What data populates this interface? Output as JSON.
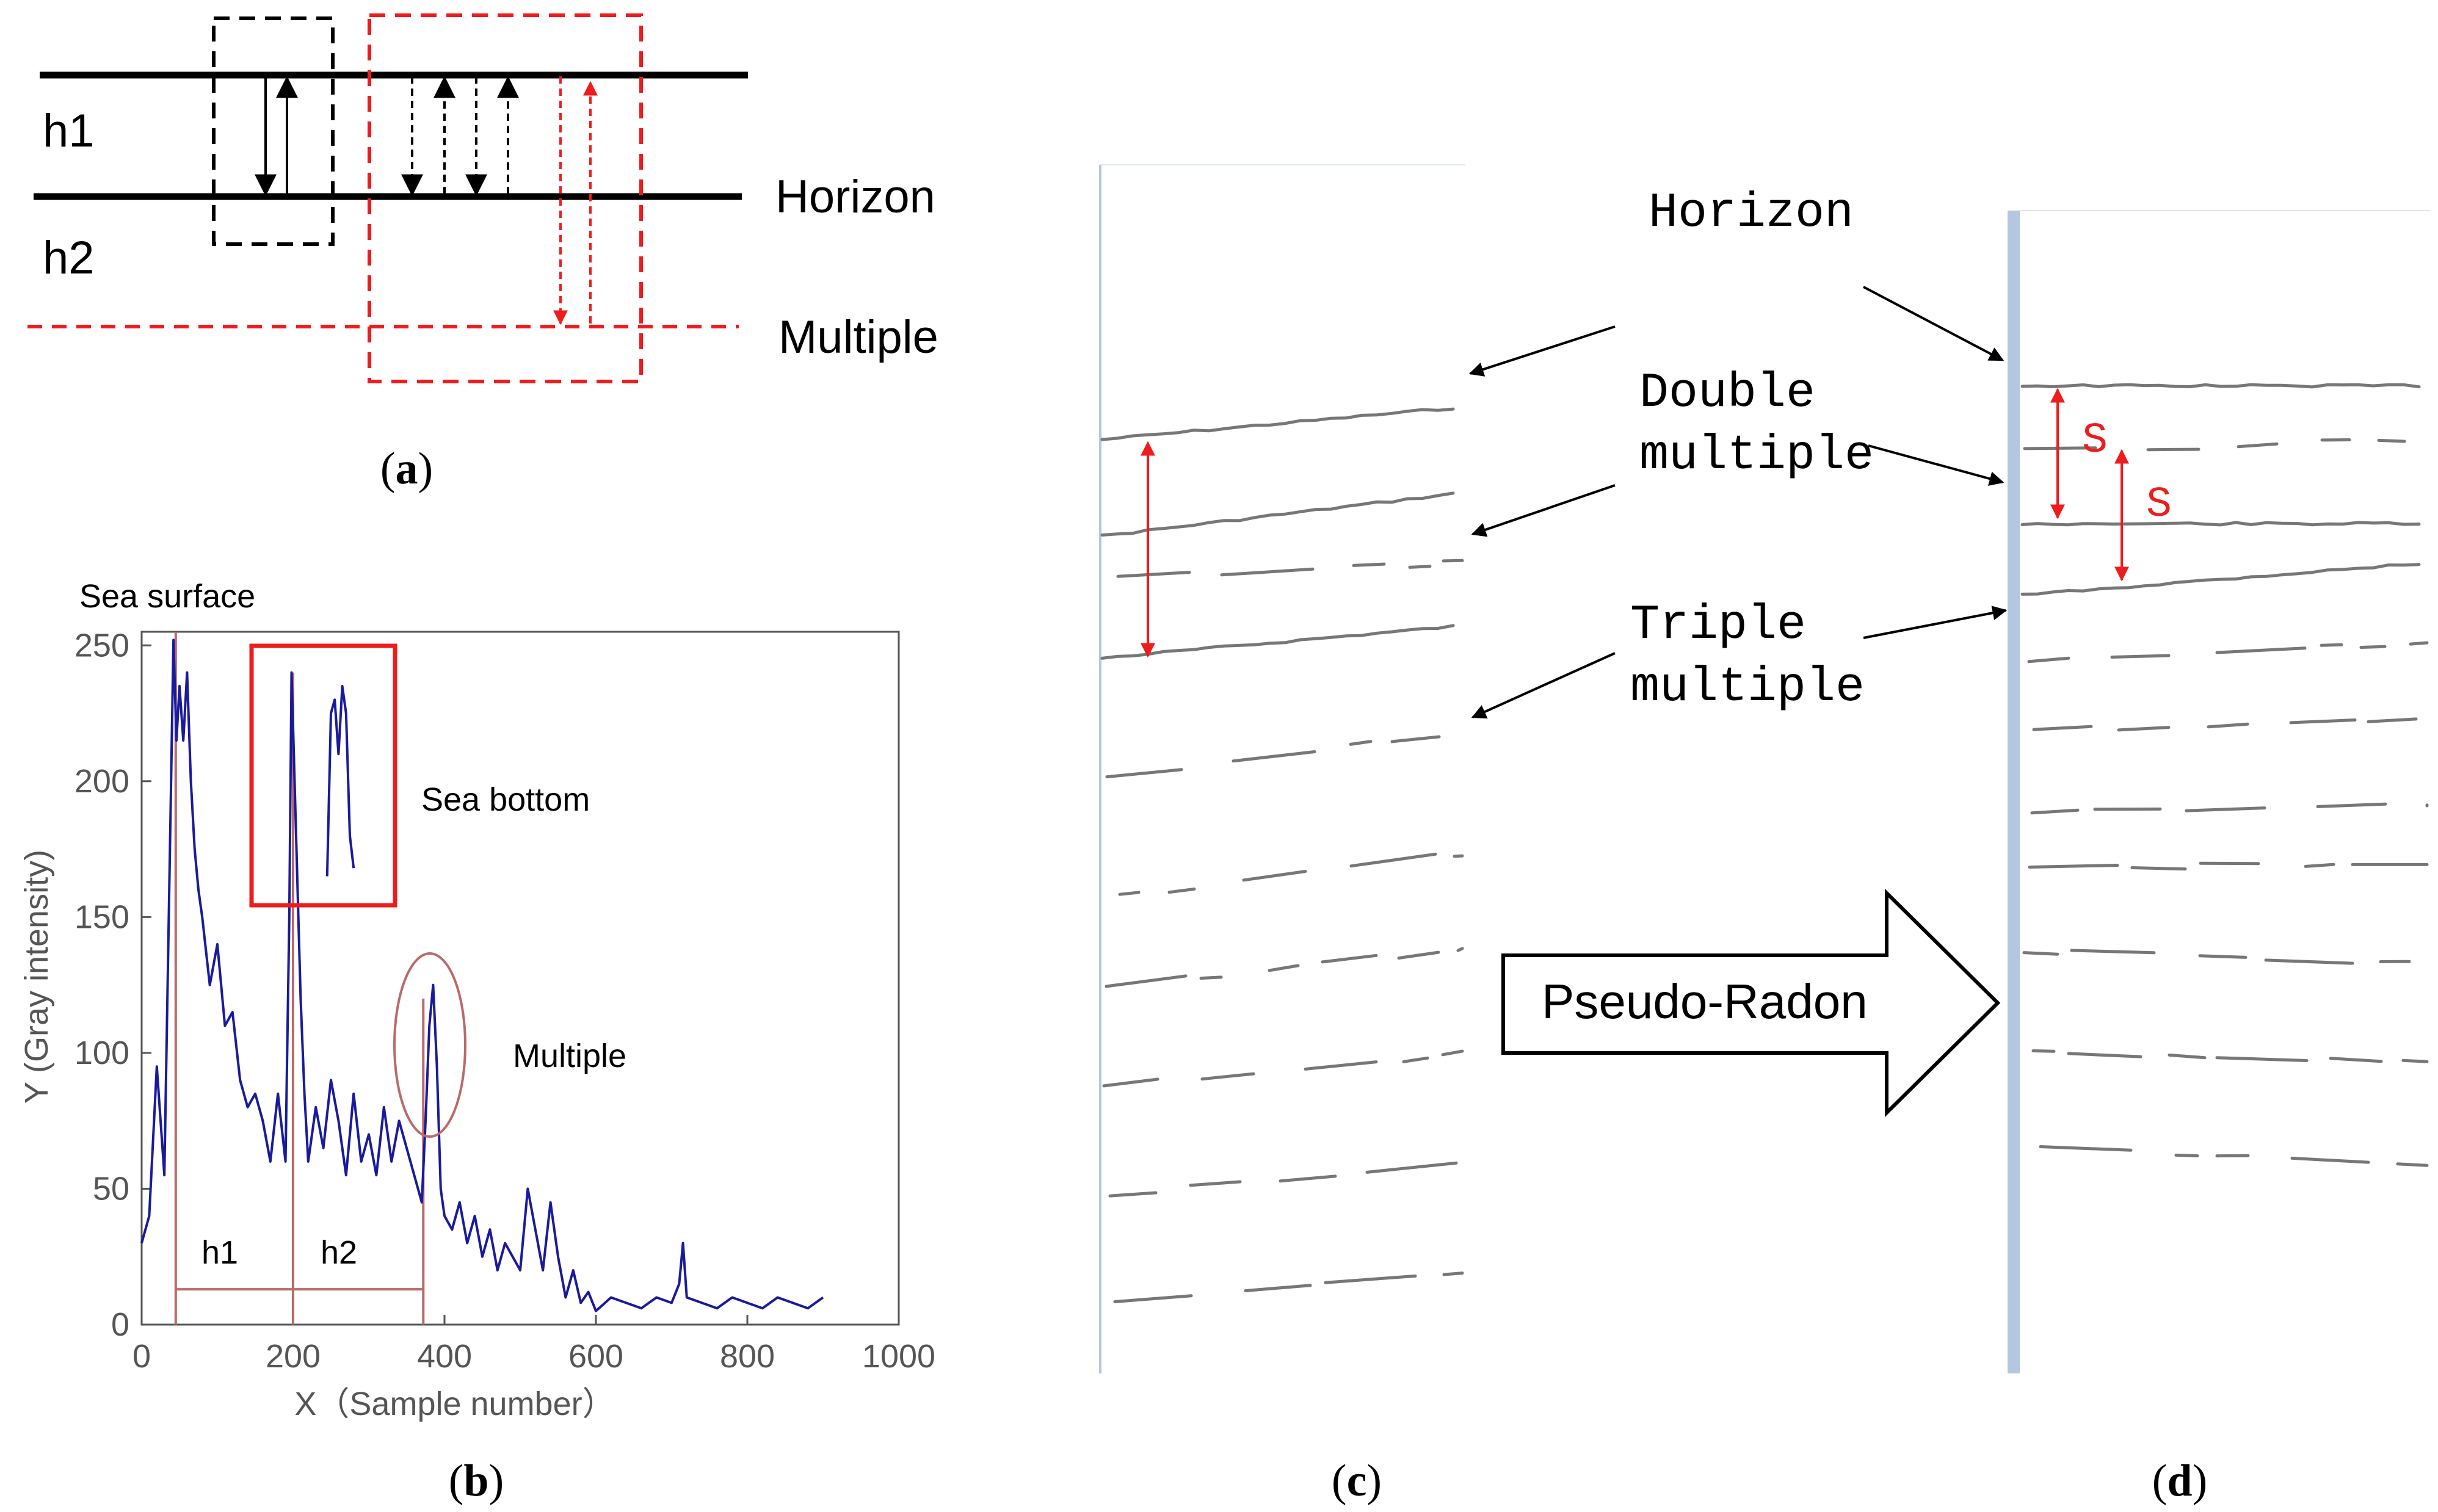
{
  "panel_a": {
    "label": "a",
    "layer_labels": [
      "h1",
      "h2"
    ],
    "horizon_label": "Horizon",
    "multiple_label": "Multiple"
  },
  "panel_b": {
    "label": "b",
    "sea_surface_label": "Sea surface",
    "sea_bottom_label": "Sea bottom",
    "multiple_label": "Multiple",
    "h1_label": "h1",
    "h2_label": "h2",
    "chart_data": {
      "type": "line",
      "title": "",
      "xlabel": "X（Sample number）",
      "ylabel": "Y (Gray intensity)",
      "xlim": [
        0,
        1000
      ],
      "ylim": [
        0,
        255
      ],
      "xticks": [
        0,
        200,
        400,
        600,
        800,
        1000
      ],
      "yticks": [
        0,
        50,
        100,
        150,
        200,
        250
      ],
      "series": [
        {
          "name": "gray intensity",
          "color": "#1a1a9c",
          "x": [
            0,
            10,
            20,
            30,
            38,
            42,
            46,
            50,
            55,
            60,
            65,
            70,
            75,
            80,
            90,
            100,
            110,
            120,
            130,
            140,
            150,
            160,
            170,
            180,
            190,
            195,
            198,
            202,
            206,
            210,
            215,
            220,
            230,
            240,
            250,
            260,
            270,
            280,
            290,
            300,
            310,
            320,
            330,
            340,
            350,
            360,
            370,
            375,
            380,
            385,
            390,
            395,
            400,
            410,
            420,
            430,
            440,
            450,
            460,
            470,
            480,
            490,
            500,
            510,
            520,
            530,
            540,
            550,
            560,
            570,
            580,
            590,
            600,
            620,
            640,
            660,
            680,
            700,
            710,
            715,
            720,
            740,
            760,
            780,
            800,
            820,
            840,
            860,
            880,
            900
          ],
          "values": [
            30,
            40,
            95,
            55,
            185,
            252,
            215,
            235,
            215,
            240,
            200,
            175,
            160,
            150,
            125,
            140,
            110,
            115,
            90,
            80,
            85,
            75,
            60,
            85,
            60,
            150,
            240,
            200,
            160,
            120,
            85,
            60,
            80,
            65,
            90,
            75,
            55,
            85,
            60,
            70,
            55,
            80,
            60,
            75,
            65,
            55,
            45,
            75,
            110,
            125,
            95,
            50,
            40,
            35,
            45,
            30,
            40,
            25,
            35,
            20,
            30,
            25,
            20,
            50,
            35,
            20,
            45,
            25,
            10,
            20,
            8,
            12,
            5,
            10,
            8,
            6,
            10,
            8,
            15,
            30,
            10,
            8,
            6,
            10,
            8,
            6,
            10,
            8,
            6,
            10
          ]
        },
        {
          "name": "sea bottom inset",
          "color": "#1a1a9c",
          "x": [
            245,
            250,
            255,
            260,
            265,
            270,
            275,
            280
          ],
          "values": [
            165,
            225,
            230,
            210,
            235,
            225,
            180,
            168
          ]
        }
      ]
    }
  },
  "panel_c": {
    "label": "c",
    "horizon_label": "Horizon",
    "double_multiple_label": "Double\nmultiple",
    "triple_multiple_label": "Triple\nmultiple",
    "arrow_label": "Pseudo-Radon"
  },
  "panel_d": {
    "label": "d",
    "s_label_1": "S",
    "s_label_2": "S"
  },
  "colors": {
    "red": "#ee1c1c",
    "black": "#000000",
    "blue_line": "#1a1a9c",
    "marker_line": "#b96a6a",
    "seismic_line": "#777777",
    "frame_blue": "#b4c6e0"
  }
}
